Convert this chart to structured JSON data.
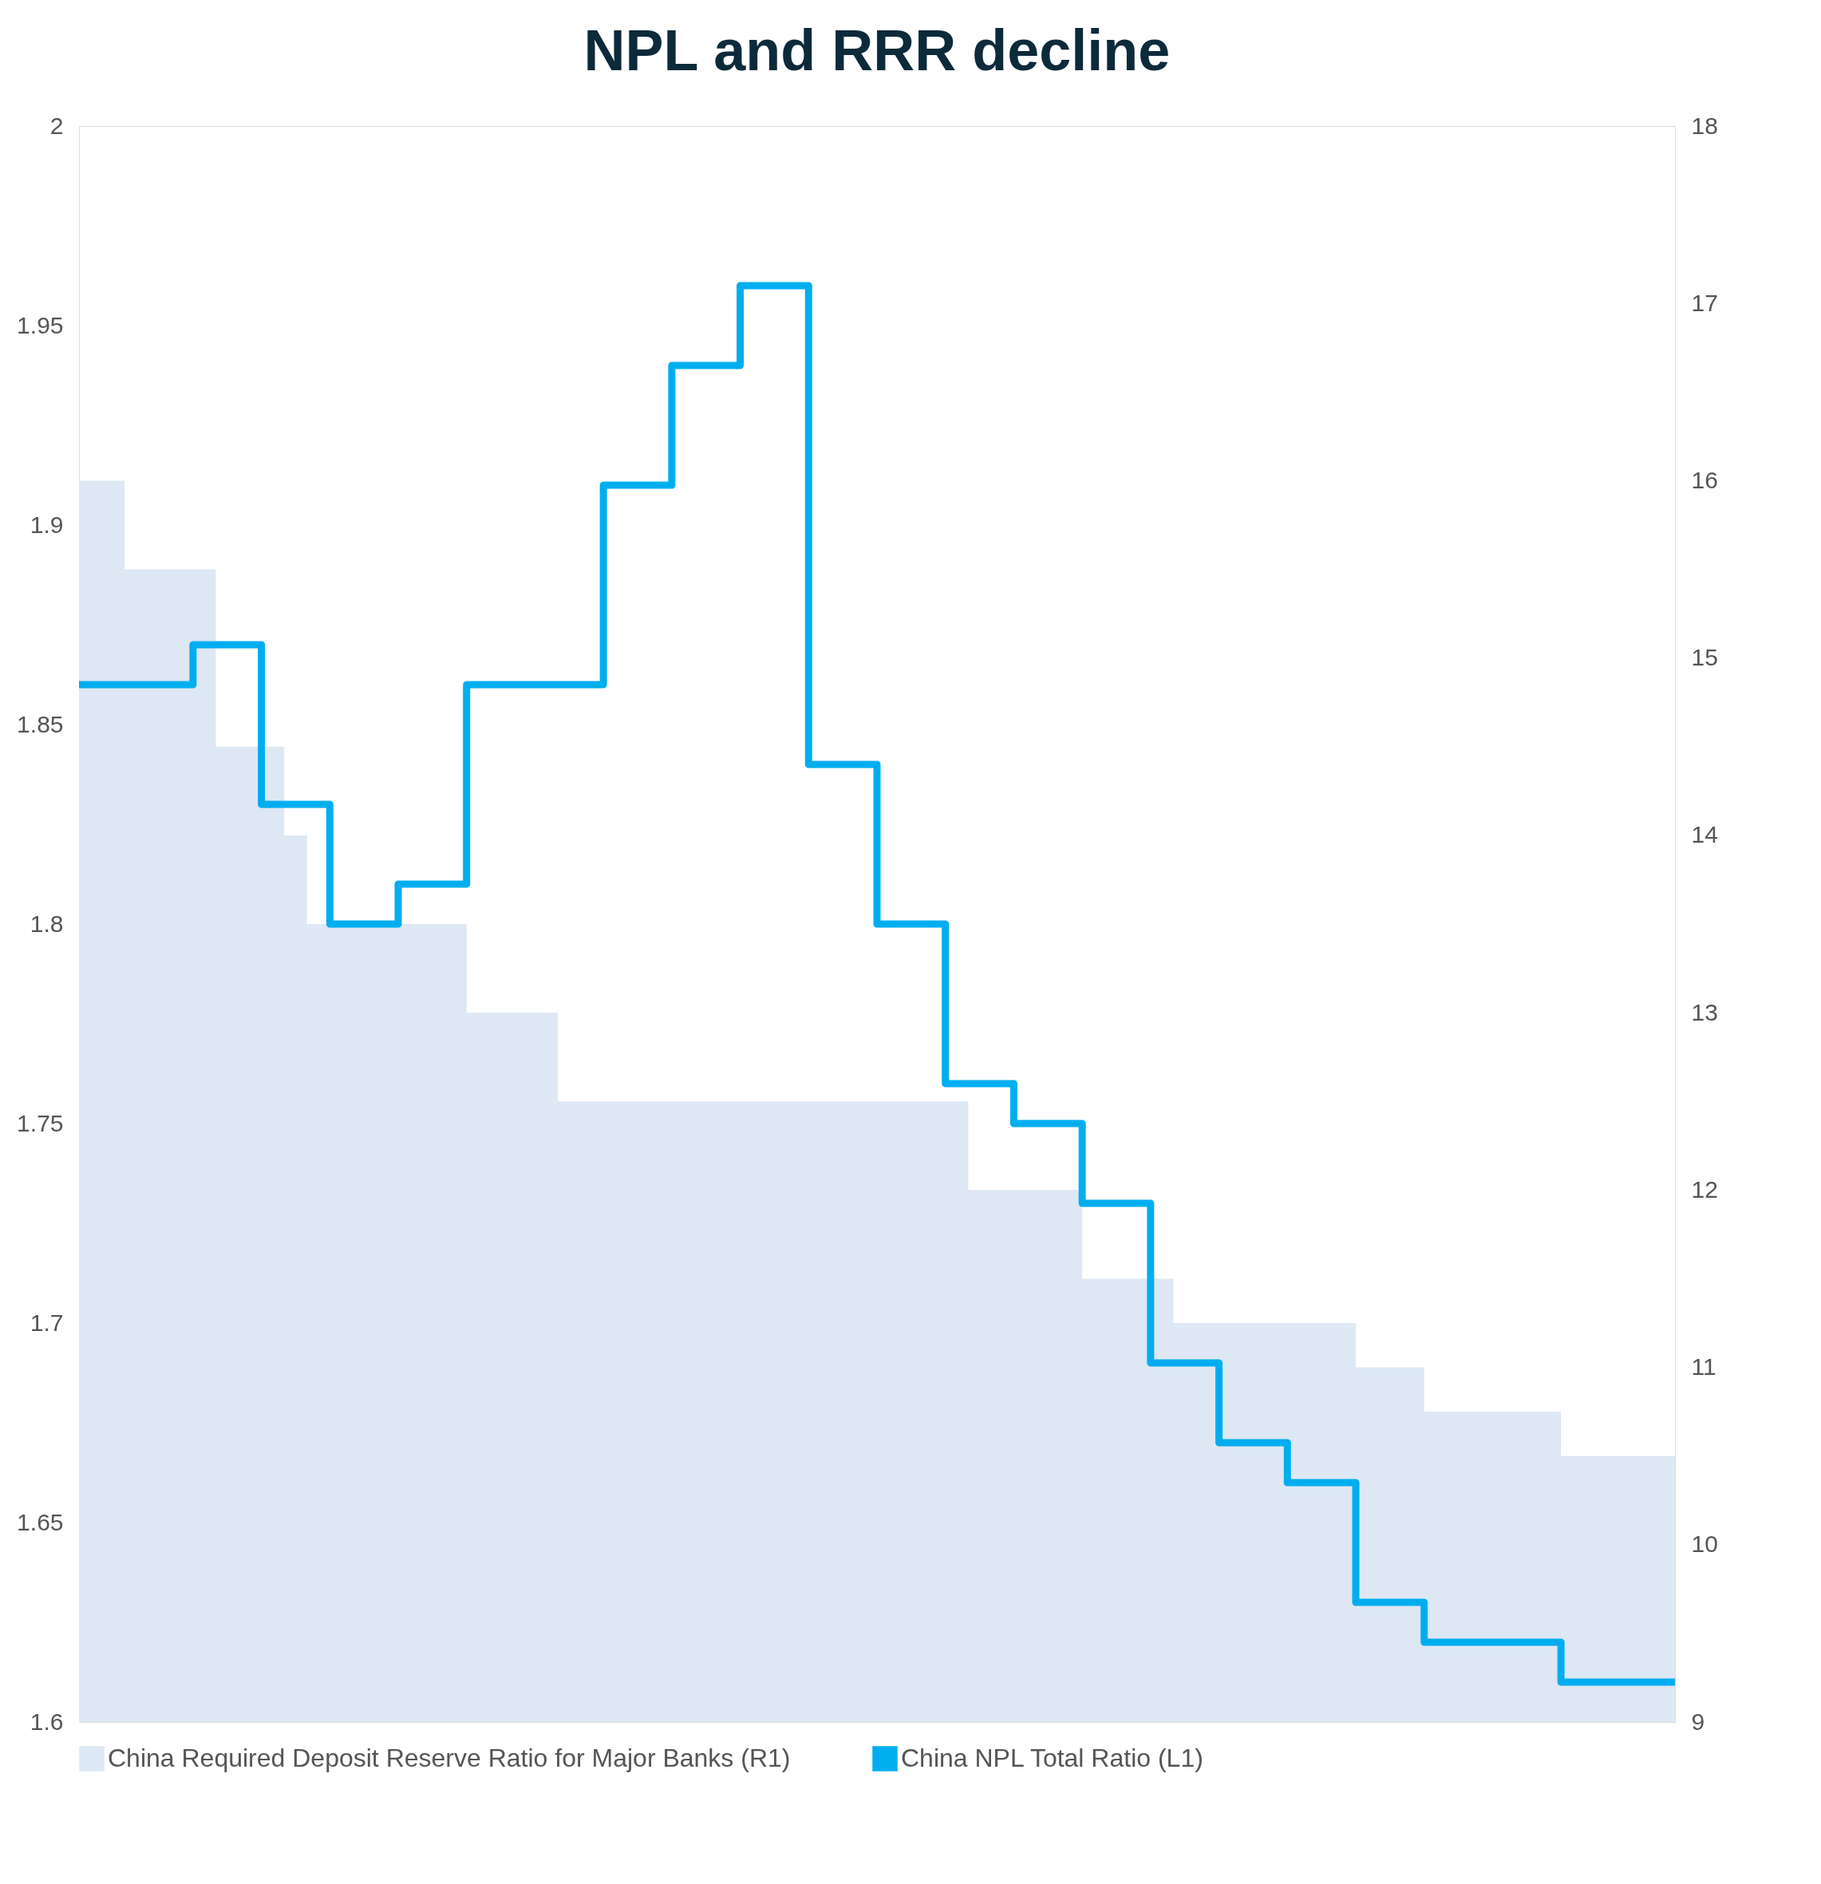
{
  "chart_data": {
    "type": "line",
    "title": "NPL and RRR decline",
    "categories": [
      null,
      null,
      null,
      null,
      null,
      null,
      null,
      null,
      null,
      null,
      null,
      null,
      null,
      null,
      null,
      null,
      null,
      null,
      null,
      null,
      null,
      null,
      null,
      null,
      null,
      null,
      null,
      null,
      null,
      null,
      null,
      null,
      null,
      null,
      null,
      null,
      null,
      null,
      null,
      null,
      null,
      null,
      null,
      null,
      null,
      null,
      null,
      null,
      null,
      null,
      null,
      null,
      null,
      null,
      null,
      null,
      null,
      null,
      null,
      null,
      null,
      null,
      null,
      null,
      null,
      null,
      null,
      null,
      null,
      null,
      null
    ],
    "series": [
      {
        "name": "China Required Deposit Reserve Ratio for Major Banks (R1)",
        "type": "area",
        "axis": "y2",
        "color": "#dde8f4",
        "values": [
          16.0,
          16.0,
          15.5,
          15.5,
          15.5,
          15.5,
          14.5,
          14.5,
          14.5,
          14.0,
          13.5,
          13.5,
          13.5,
          13.5,
          13.5,
          13.5,
          13.5,
          13.0,
          13.0,
          13.0,
          13.0,
          12.5,
          12.5,
          12.5,
          12.5,
          12.5,
          12.5,
          12.5,
          12.5,
          12.5,
          12.5,
          12.5,
          12.5,
          12.5,
          12.5,
          12.5,
          12.5,
          12.5,
          12.5,
          12.0,
          12.0,
          12.0,
          12.0,
          12.0,
          11.5,
          11.5,
          11.5,
          11.5,
          11.25,
          11.25,
          11.25,
          11.25,
          11.25,
          11.25,
          11.25,
          11.25,
          11.0,
          11.0,
          11.0,
          10.75,
          10.75,
          10.75,
          10.75,
          10.75,
          10.75,
          10.5,
          10.5,
          10.5,
          10.5,
          10.5,
          10.0
        ]
      },
      {
        "name": "China NPL Total Ratio (L1)",
        "type": "step",
        "color": "#00aeef",
        "values": [
          1.86,
          1.86,
          1.86,
          1.86,
          1.86,
          1.87,
          1.87,
          1.87,
          1.83,
          1.83,
          1.83,
          1.8,
          1.8,
          1.8,
          1.81,
          1.81,
          1.81,
          1.86,
          1.86,
          1.86,
          1.86,
          1.86,
          1.86,
          1.91,
          1.91,
          1.91,
          1.94,
          1.94,
          1.94,
          1.96,
          1.96,
          1.96,
          1.84,
          1.84,
          1.84,
          1.8,
          1.8,
          1.8,
          1.76,
          1.76,
          1.76,
          1.75,
          1.75,
          1.75,
          1.73,
          1.73,
          1.73,
          1.69,
          1.69,
          1.69,
          1.67,
          1.67,
          1.67,
          1.66,
          1.66,
          1.66,
          1.63,
          1.63,
          1.63,
          1.62,
          1.62,
          1.62,
          1.62,
          1.62,
          1.62,
          1.61,
          1.61,
          1.61,
          1.61,
          1.61,
          1.61
        ]
      }
    ],
    "ylim": [
      1.6,
      2
    ],
    "yticks": [
      1.6,
      1.65,
      1.7,
      1.75,
      1.8,
      1.85,
      1.9,
      1.95,
      2
    ],
    "y2lim": [
      9,
      18
    ],
    "y2ticks": [
      9,
      10,
      11,
      12,
      13,
      14,
      15,
      16,
      17,
      18
    ],
    "legend": "bottom",
    "tick_labels": "y"
  }
}
